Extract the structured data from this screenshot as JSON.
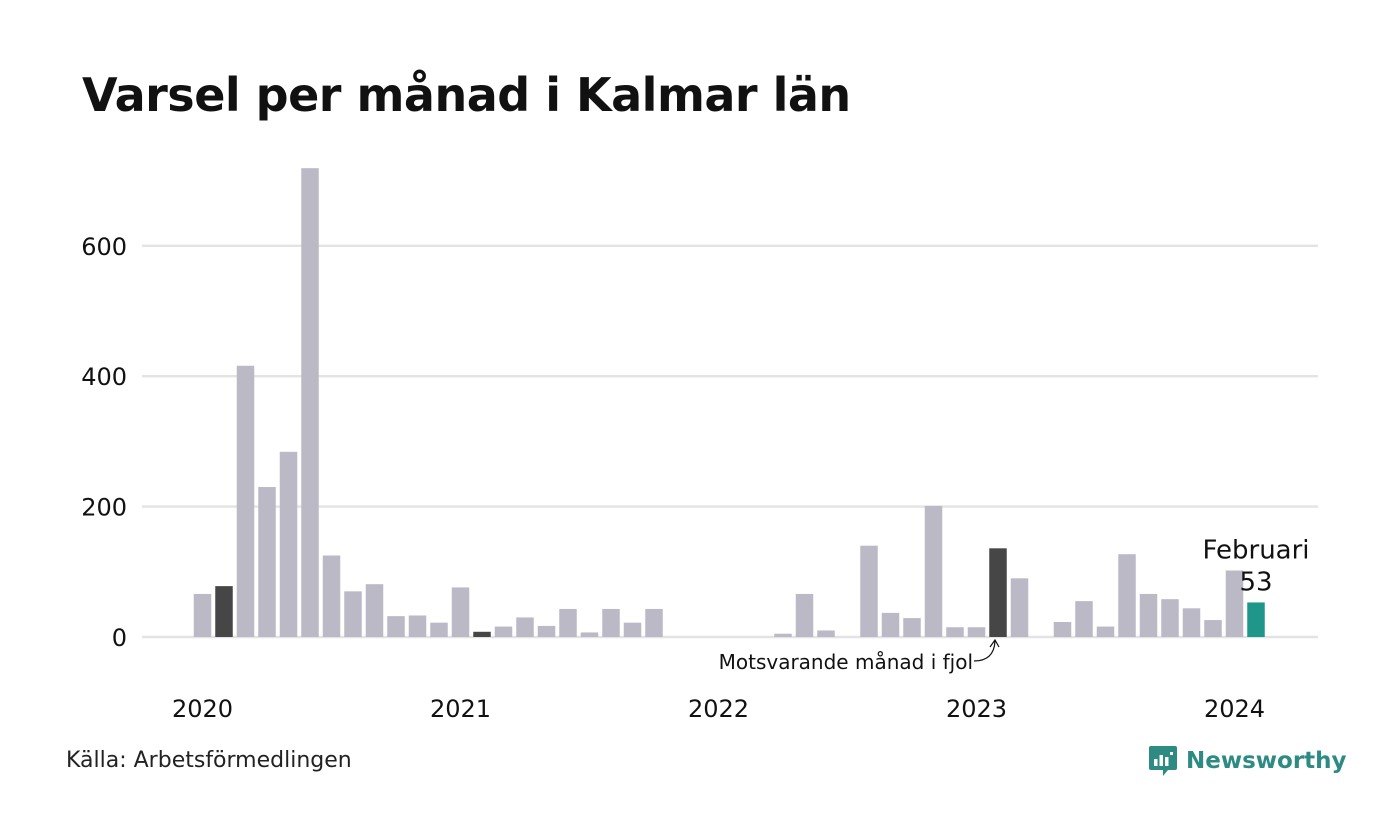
{
  "chart_data": {
    "type": "bar",
    "title": "Varsel per månad i Kalmar län",
    "xlabel": "",
    "ylabel": "",
    "ylim": [
      0,
      730
    ],
    "yticks": [
      0,
      200,
      400,
      600
    ],
    "grid": true,
    "start": "2020-01",
    "year_labels": [
      "2020",
      "2021",
      "2022",
      "2023",
      "2024"
    ],
    "values": [
      66,
      78,
      416,
      230,
      284,
      719,
      125,
      70,
      81,
      32,
      33,
      22,
      76,
      8,
      16,
      30,
      17,
      43,
      7,
      43,
      22,
      43,
      0,
      0,
      0,
      0,
      0,
      5,
      66,
      10,
      0,
      140,
      37,
      29,
      201,
      15,
      15,
      136,
      90,
      0,
      23,
      55,
      16,
      127,
      66,
      58,
      44,
      26,
      102,
      53
    ],
    "colors": {
      "default": "#bbb9c6",
      "comparison": "#464646",
      "current": "#1e968a",
      "grid": "#e3e3e3"
    },
    "comparison_months": [
      "2020-02",
      "2021-02",
      "2023-02"
    ],
    "current_month": "2024-02",
    "annotations": {
      "current_label": "Februari",
      "current_value": "53",
      "comparison_label": "Motsvarande månad i fjol"
    }
  },
  "footer": {
    "source": "Källa: Arbetsförmedlingen",
    "brand": "Newsworthy",
    "brand_color": "#2e8b83",
    "brand_icon": "newsworthy-logo-icon"
  }
}
